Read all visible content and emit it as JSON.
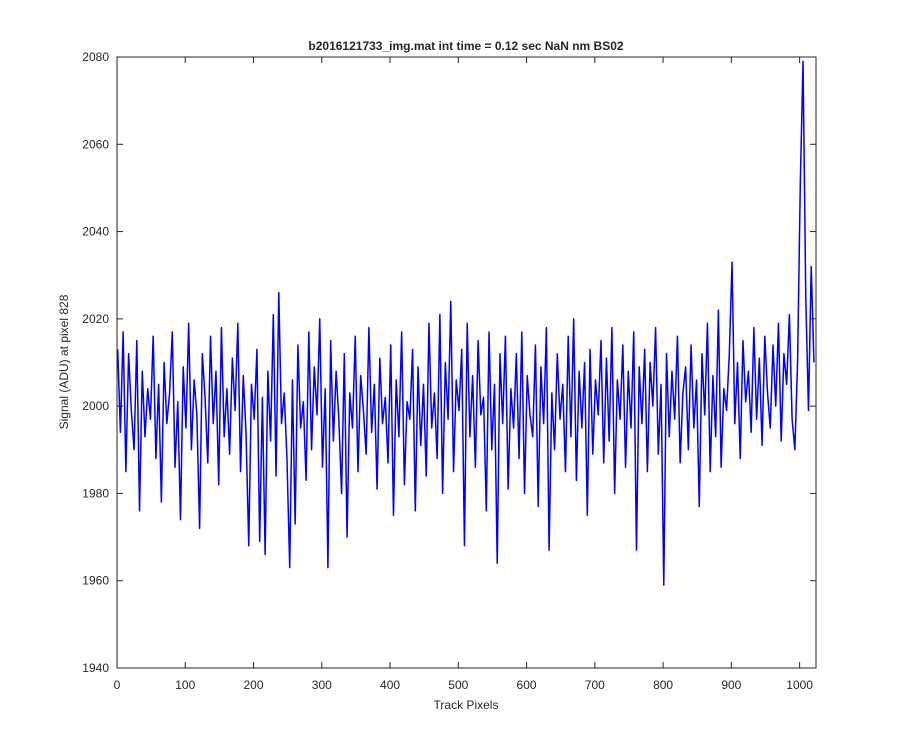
{
  "chart_data": {
    "type": "line",
    "title": "b2016121733_img.mat int time = 0.12 sec  NaN nm BS02",
    "x_label": "Track Pixels",
    "y_label": "Signal (ADU) at pixel 828",
    "xlim": [
      0,
      1024
    ],
    "ylim": [
      1940,
      2080
    ],
    "xticks": [
      0,
      100,
      200,
      300,
      400,
      500,
      600,
      700,
      800,
      900,
      1000
    ],
    "yticks": [
      1940,
      1960,
      1980,
      2000,
      2020,
      2040,
      2060,
      2080
    ],
    "x": [
      1,
      5,
      9,
      13,
      17,
      21,
      25,
      29,
      33,
      37,
      41,
      45,
      49,
      53,
      57,
      61,
      65,
      69,
      73,
      77,
      81,
      85,
      89,
      93,
      97,
      101,
      105,
      109,
      113,
      117,
      121,
      125,
      129,
      133,
      137,
      141,
      145,
      149,
      153,
      157,
      161,
      165,
      169,
      173,
      177,
      181,
      185,
      189,
      193,
      197,
      201,
      205,
      209,
      213,
      217,
      221,
      225,
      229,
      233,
      237,
      241,
      245,
      249,
      253,
      257,
      261,
      265,
      269,
      273,
      277,
      281,
      285,
      289,
      293,
      297,
      301,
      305,
      309,
      313,
      317,
      321,
      325,
      329,
      333,
      337,
      341,
      345,
      349,
      353,
      357,
      361,
      365,
      369,
      373,
      377,
      381,
      385,
      389,
      393,
      397,
      401,
      405,
      409,
      413,
      417,
      421,
      425,
      429,
      433,
      437,
      441,
      445,
      449,
      453,
      457,
      461,
      465,
      469,
      473,
      477,
      481,
      485,
      489,
      493,
      497,
      501,
      505,
      509,
      513,
      517,
      521,
      525,
      529,
      533,
      537,
      541,
      545,
      549,
      553,
      557,
      561,
      565,
      569,
      573,
      577,
      581,
      585,
      589,
      593,
      597,
      601,
      605,
      609,
      613,
      617,
      621,
      625,
      629,
      633,
      637,
      641,
      645,
      649,
      653,
      657,
      661,
      665,
      669,
      673,
      677,
      681,
      685,
      689,
      693,
      697,
      701,
      705,
      709,
      713,
      717,
      721,
      725,
      729,
      733,
      737,
      741,
      745,
      749,
      753,
      757,
      761,
      765,
      769,
      773,
      777,
      781,
      785,
      789,
      793,
      797,
      801,
      805,
      809,
      813,
      817,
      821,
      825,
      829,
      833,
      837,
      841,
      845,
      849,
      853,
      857,
      861,
      865,
      869,
      873,
      877,
      881,
      885,
      889,
      893,
      897,
      901,
      905,
      909,
      913,
      917,
      921,
      925,
      929,
      933,
      937,
      941,
      945,
      949,
      953,
      957,
      961,
      965,
      969,
      973,
      977,
      981,
      985,
      989,
      993,
      997,
      1001,
      1005,
      1009,
      1013,
      1017,
      1021
    ],
    "series": [
      {
        "name": "signal",
        "color": "#0000ff",
        "values": [
          2013,
          1994,
          2017,
          1985,
          2012,
          1999,
          1990,
          2015,
          1976,
          2008,
          1993,
          2004,
          1997,
          2016,
          1988,
          2005,
          1978,
          2010,
          1996,
          2003,
          2017,
          1986,
          2001,
          1974,
          2009,
          1995,
          2019,
          1990,
          2006,
          1998,
          1972,
          2012,
          2002,
          1987,
          2016,
          1996,
          2008,
          1982,
          2018,
          1993,
          2004,
          1989,
          2011,
          1999,
          2019,
          1985,
          2007,
          1994,
          1968,
          2005,
          1997,
          2013,
          1969,
          2002,
          1966,
          2008,
          1992,
          2021,
          1984,
          2026,
          1996,
          2003,
          1988,
          1963,
          2006,
          1973,
          2014,
          1995,
          2001,
          1983,
          2017,
          1990,
          2009,
          1998,
          2020,
          1986,
          2004,
          1963,
          2015,
          1992,
          2008,
          1997,
          1980,
          2012,
          1970,
          2003,
          1995,
          2016,
          1985,
          2007,
          1999,
          1989,
          2018,
          1994,
          2005,
          1981,
          2011,
          1996,
          2002,
          1987,
          2014,
          1975,
          2006,
          1993,
          2017,
          1982,
          2001,
          1997,
          2013,
          1976,
          2009,
          1991,
          2005,
          1984,
          2019,
          1995,
          2003,
          1988,
          2021,
          1980,
          2010,
          1997,
          2024,
          1985,
          2006,
          1999,
          2013,
          1968,
          2019,
          1993,
          2007,
          1986,
          2015,
          1998,
          2002,
          1976,
          2017,
          1990,
          2005,
          1964,
          2012,
          1996,
          2016,
          1981,
          2004,
          1995,
          2012,
          1988,
          2017,
          1980,
          2007,
          1998,
          1993,
          2014,
          1977,
          2009,
          1996,
          2018,
          1967,
          2003,
          1990,
          2012,
          1997,
          2005,
          1985,
          2016,
          1993,
          2020,
          1983,
          2008,
          1995,
          2010,
          1975,
          2013,
          1989,
          2006,
          1998,
          2015,
          1987,
          2011,
          1992,
          2018,
          1980,
          2006,
          1997,
          2014,
          1986,
          2008,
          1995,
          2017,
          1967,
          2009,
          1996,
          2013,
          1985,
          2010,
          2000,
          2018,
          1989,
          2005,
          1959,
          2012,
          1993,
          2008,
          1997,
          2016,
          1987,
          2003,
          2009,
          1990,
          2014,
          1995,
          2006,
          1977,
          2012,
          1998,
          2019,
          1985,
          2007,
          1993,
          2022,
          1986,
          2004,
          1999,
          2012,
          2033,
          1996,
          2010,
          1988,
          2015,
          2001,
          2008,
          1994,
          2018,
          1997,
          2011,
          1991,
          2016,
          2003,
          1995,
          2014,
          2000,
          2019,
          1992,
          2012,
          2005,
          2021,
          1997,
          1990,
          2010,
          2051,
          2079,
          2025,
          1999,
          2032,
          2010
        ]
      }
    ]
  }
}
